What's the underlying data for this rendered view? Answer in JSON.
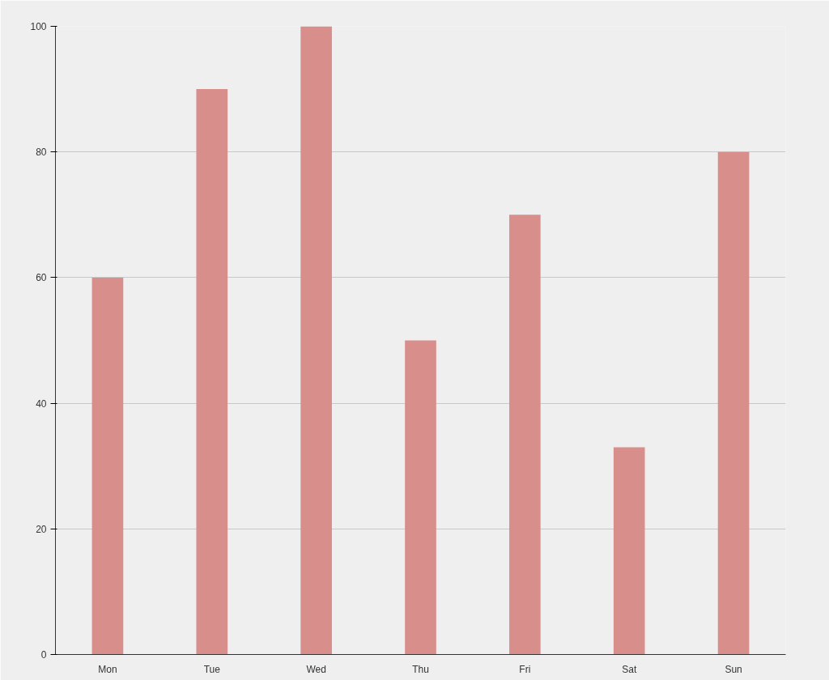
{
  "chart_data": {
    "type": "bar",
    "categories": [
      "Mon",
      "Tue",
      "Wed",
      "Thu",
      "Fri",
      "Sat",
      "Sun"
    ],
    "values": [
      60,
      90,
      100,
      50,
      70,
      33,
      80
    ],
    "color": "#d88f8c",
    "ylim": [
      0,
      100
    ],
    "yticks": [
      0,
      20,
      40,
      60,
      80,
      100
    ],
    "grid": "y"
  }
}
